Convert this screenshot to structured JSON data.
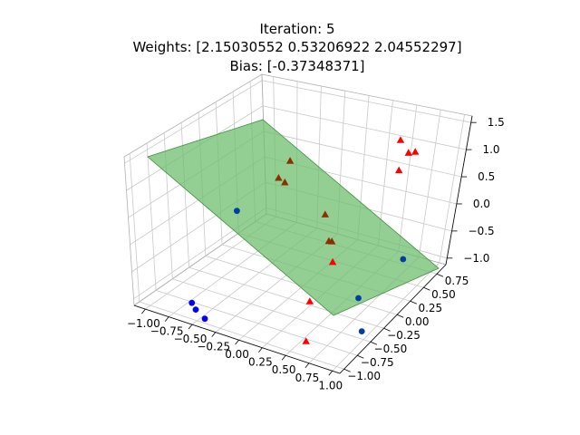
{
  "chart_data": {
    "type": "scatter",
    "title_lines": [
      "Iteration: 5",
      "Weights: [2.15030552 0.53206922 2.04552297]",
      "Bias: [-0.37348371]"
    ],
    "plot_kind": "3d-scatter-with-decision-plane",
    "x_ticks": [
      "−1.00",
      "−0.75",
      "−0.50",
      "−0.25",
      "0.00",
      "0.25",
      "0.50",
      "0.75",
      "1.00"
    ],
    "y_ticks": [
      "−1.00",
      "−0.75",
      "−0.50",
      "−0.25",
      "0.00",
      "0.25",
      "0.50",
      "0.75"
    ],
    "z_ticks": [
      "−1.0",
      "−0.5",
      "0.0",
      "0.5",
      "1.0",
      "1.5"
    ],
    "grid": true,
    "plane": {
      "color": "#6fbf6f",
      "opacity": 0.75,
      "edge_color": "#3f8f3f"
    },
    "series": [
      {
        "marker": "circle",
        "color": "#0000ff",
        "shade_color": "#003f9f",
        "points": [
          [
            -0.35,
            -0.55,
            0.55
          ],
          [
            -0.62,
            -0.9,
            -0.95
          ],
          [
            -0.58,
            -0.9,
            -1.05
          ],
          [
            -0.45,
            -0.95,
            -1.1
          ],
          [
            0.75,
            -0.2,
            -0.8
          ],
          [
            0.95,
            -0.45,
            -1.05
          ],
          [
            0.75,
            0.6,
            -0.85
          ]
        ]
      },
      {
        "marker": "triangle",
        "color": "#ff0000",
        "shade_color": "#8b3000",
        "points": [
          [
            0.45,
            0.8,
            1.05
          ],
          [
            0.55,
            0.8,
            0.85
          ],
          [
            0.65,
            0.75,
            0.95
          ],
          [
            0.5,
            0.75,
            0.55
          ],
          [
            -0.1,
            -0.1,
            1.2
          ],
          [
            -0.15,
            -0.2,
            0.95
          ],
          [
            -0.05,
            -0.25,
            0.95
          ],
          [
            0.35,
            -0.2,
            0.5
          ],
          [
            0.4,
            -0.15,
            0.0
          ],
          [
            0.45,
            -0.2,
            -0.3
          ],
          [
            0.4,
            -0.5,
            -0.75
          ],
          [
            0.55,
            -0.8,
            -1.1
          ],
          [
            0.4,
            -0.2,
            0.05
          ]
        ]
      }
    ]
  }
}
